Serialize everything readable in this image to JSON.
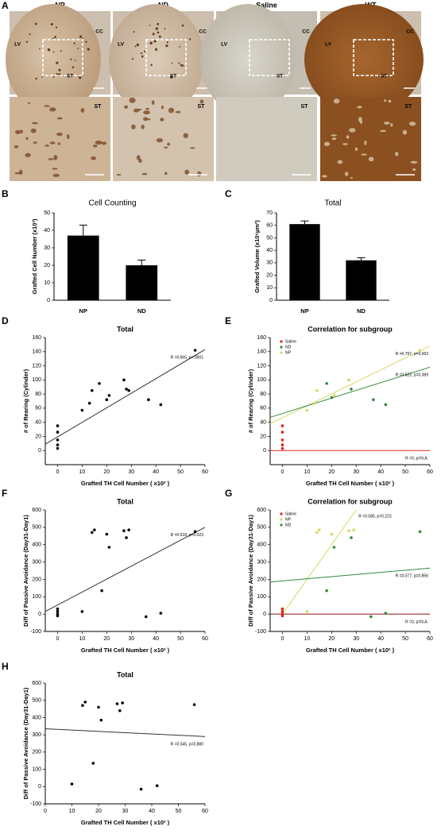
{
  "panel_a": {
    "letter": "A",
    "columns": [
      {
        "label": "NP",
        "top": [
          "CC",
          "LV",
          "ST"
        ],
        "bottom": "ST"
      },
      {
        "label": "ND",
        "top": [
          "CC",
          "LV",
          "ST"
        ],
        "bottom": "ST"
      },
      {
        "label": "Saline",
        "top": [
          "CC",
          "LV",
          "ST"
        ],
        "bottom": "ST"
      },
      {
        "label": "WT",
        "top": [
          "CC",
          "LV",
          "ST"
        ],
        "bottom": "ST"
      }
    ]
  },
  "chart_data": [
    {
      "type": "bar",
      "panel": "B",
      "title": "Cell Counting",
      "ylabel": "Grafted Cell Number (x10³)",
      "categories": [
        "NP",
        "ND"
      ],
      "values": [
        37,
        20
      ],
      "errors": [
        6,
        3
      ],
      "color": "#000000",
      "ylim": [
        0,
        50
      ],
      "yticks": [
        0,
        10,
        20,
        30,
        40,
        50
      ]
    },
    {
      "type": "bar",
      "panel": "C",
      "title": "Total",
      "ylabel": "Grafted Volume (x10⁶µm³)",
      "categories": [
        "NP",
        "ND"
      ],
      "values": [
        61,
        32
      ],
      "errors": [
        2.5,
        2
      ],
      "color": "#000000",
      "ylim": [
        0,
        70
      ],
      "yticks": [
        0,
        10,
        20,
        30,
        40,
        50,
        60,
        70
      ]
    },
    {
      "type": "scatter",
      "panel": "D",
      "title": "Total",
      "xlabel": "Grafted TH Cell Number ( x10² )",
      "ylabel": "# of Rearing (Cylinder)",
      "xlim": [
        -5,
        60
      ],
      "xticks": [
        0,
        10,
        20,
        30,
        40,
        50,
        60
      ],
      "ylim": [
        -20,
        160
      ],
      "yticks": [
        0,
        20,
        40,
        60,
        80,
        100,
        120,
        140,
        160
      ],
      "series": [
        {
          "color": "#000000",
          "x": [
            0,
            0,
            0,
            0,
            0,
            10,
            13,
            14,
            17,
            20,
            21,
            27,
            28,
            29,
            37,
            42,
            56
          ],
          "y": [
            35,
            26,
            15,
            8,
            3,
            57,
            67,
            85,
            95,
            72,
            78,
            100,
            87,
            85,
            72,
            65,
            142
          ]
        }
      ],
      "fits": [
        {
          "color": "#333333",
          "x": [
            -5,
            60
          ],
          "y": [
            9,
            143
          ],
          "label": "R =0.665, p<.0001"
        }
      ]
    },
    {
      "type": "scatter",
      "panel": "E",
      "title": "Correlation for subgroup",
      "xlabel": "Grafted TH Cell Number ( x10² )",
      "ylabel": "# of Rearing (Cylinder)",
      "xlim": [
        -5,
        60
      ],
      "xticks": [
        0,
        10,
        20,
        30,
        40,
        50,
        60
      ],
      "ylim": [
        -20,
        160
      ],
      "yticks": [
        0,
        20,
        40,
        60,
        80,
        100,
        120,
        140,
        160
      ],
      "series": [
        {
          "name": "Saline",
          "color": "#e02020",
          "x": [
            0,
            0,
            0,
            0,
            0
          ],
          "y": [
            35,
            26,
            15,
            8,
            3
          ]
        },
        {
          "name": "ND",
          "color": "#2e8b3a",
          "x": [
            18,
            20,
            28,
            37,
            42
          ],
          "y": [
            95,
            75,
            87,
            72,
            65
          ]
        },
        {
          "name": "NP",
          "color": "#d8d860",
          "x": [
            10,
            13,
            14,
            21,
            27,
            56
          ],
          "y": [
            57,
            67,
            85,
            78,
            100,
            142
          ]
        }
      ],
      "fits": [
        {
          "color": "#d8d860",
          "x": [
            -5,
            60
          ],
          "y": [
            38,
            148
          ],
          "label": "R =0.797, p=0.063"
        },
        {
          "color": "#2e8b3a",
          "x": [
            -5,
            60
          ],
          "y": [
            47,
            118
          ],
          "label": "R =0.522, p=0.389"
        },
        {
          "color": "#e02020",
          "x": [
            -5,
            60
          ],
          "y": [
            0,
            0
          ],
          "label": "R =0, p=N.A."
        }
      ]
    },
    {
      "type": "scatter",
      "panel": "F",
      "title": "Total",
      "xlabel": "Grafted TH Cell Number ( x10² )",
      "ylabel": "Diff of Passive Avoidance (Day31-Day1)",
      "xlim": [
        -5,
        60
      ],
      "xticks": [
        0,
        10,
        20,
        30,
        40,
        50,
        60
      ],
      "ylim": [
        -100,
        600
      ],
      "yticks": [
        -100,
        0,
        100,
        200,
        300,
        400,
        500,
        600
      ],
      "series": [
        {
          "color": "#000000",
          "x": [
            0,
            0,
            0,
            0,
            10,
            14,
            15,
            18,
            20,
            21,
            27,
            28,
            29,
            36,
            42,
            56
          ],
          "y": [
            30,
            15,
            0,
            -10,
            15,
            470,
            485,
            135,
            460,
            385,
            480,
            440,
            485,
            -15,
            5,
            475
          ]
        }
      ],
      "fits": [
        {
          "color": "#333333",
          "x": [
            -5,
            60
          ],
          "y": [
            15,
            500
          ],
          "label": "R =0.518, p=0.023"
        }
      ]
    },
    {
      "type": "scatter",
      "panel": "G",
      "title": "Correlation for subgroup",
      "xlabel": "Grafted TH Cell Number ( x10² )",
      "ylabel": "Diff of Passive Avoidance (Day31-Day1)",
      "xlim": [
        -5,
        60
      ],
      "xticks": [
        0,
        10,
        20,
        30,
        40,
        50,
        60
      ],
      "ylim": [
        -100,
        600
      ],
      "yticks": [
        -100,
        0,
        100,
        200,
        300,
        400,
        500,
        600
      ],
      "series": [
        {
          "name": "Saline",
          "color": "#e02020",
          "x": [
            0,
            0,
            0,
            0
          ],
          "y": [
            30,
            15,
            0,
            -10
          ]
        },
        {
          "name": "NP",
          "color": "#d8d860",
          "x": [
            10,
            14,
            15,
            20,
            27,
            29
          ],
          "y": [
            15,
            470,
            485,
            460,
            480,
            485
          ]
        },
        {
          "name": "ND",
          "color": "#2e8b3a",
          "x": [
            18,
            21,
            28,
            36,
            42,
            56
          ],
          "y": [
            135,
            385,
            440,
            -15,
            5,
            475
          ]
        }
      ],
      "fits": [
        {
          "color": "#d8d860",
          "x": [
            0,
            30
          ],
          "y": [
            0,
            600
          ],
          "label": "R =0.585, p=0.223"
        },
        {
          "color": "#2e8b3a",
          "x": [
            -5,
            60
          ],
          "y": [
            185,
            265
          ],
          "label": "R =0.077, p=0.856"
        },
        {
          "color": "#8b1010",
          "x": [
            -5,
            60
          ],
          "y": [
            0,
            0
          ],
          "label": "R =0, p=N.A."
        }
      ]
    },
    {
      "type": "scatter",
      "panel": "H",
      "title": "Total",
      "xlabel": "Grafted TH Cell Number ( x10² )",
      "ylabel": "Diff of Passive Avoidance (Day31-Day1)",
      "xlim": [
        0,
        60
      ],
      "xticks": [
        0,
        10,
        20,
        30,
        40,
        50,
        60
      ],
      "ylim": [
        -100,
        600
      ],
      "yticks": [
        -100,
        0,
        100,
        200,
        300,
        400,
        500,
        600
      ],
      "series": [
        {
          "color": "#000000",
          "x": [
            10,
            14,
            15,
            18,
            20,
            21,
            27,
            28,
            29,
            36,
            42,
            56
          ],
          "y": [
            15,
            470,
            490,
            135,
            460,
            385,
            480,
            440,
            485,
            -15,
            5,
            475
          ]
        }
      ],
      "fits": [
        {
          "color": "#333333",
          "x": [
            0,
            60
          ],
          "y": [
            335,
            290
          ],
          "label": "R =0.045, p=0.880"
        }
      ]
    }
  ]
}
